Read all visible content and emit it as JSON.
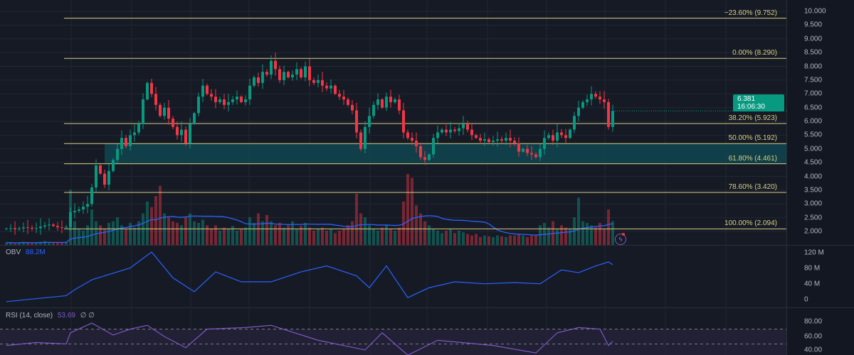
{
  "colors": {
    "background": "#161a25",
    "grid": "#232733",
    "up": "#089981",
    "down": "#f23645",
    "fib": "#d6cf82",
    "zone": "#0f4550",
    "obv": "#2962ff",
    "rsi": "#7e57c2",
    "rsi_band": "#2a2440",
    "vol_ma": "#2962ff",
    "price_tag": "#089981"
  },
  "price_axis": {
    "labels": [
      "10.000",
      "9.500",
      "9.000",
      "8.500",
      "8.000",
      "7.500",
      "7.000",
      "6.500",
      "6.000",
      "5.500",
      "5.000",
      "4.500",
      "4.000",
      "3.500",
      "3.000",
      "2.500",
      "2.000"
    ]
  },
  "price_tag": {
    "price": "6.381",
    "countdown": "16:06:30"
  },
  "obv_pane": {
    "title": "OBV",
    "value": "88.2M",
    "axis_labels": [
      "120 M",
      "80 M",
      "40 M",
      "0"
    ]
  },
  "rsi_pane": {
    "title": "RSI (14, close)",
    "value": "53.69",
    "extras": "∅ ∅",
    "axis_labels": [
      "80.00",
      "60.00",
      "40.00"
    ]
  },
  "fib_levels": [
    {
      "label": "−23.60% (9.752)",
      "price": 9.752
    },
    {
      "label": "0.00% (8.290)",
      "price": 8.29
    },
    {
      "label": "38.20% (5.923)",
      "price": 5.923
    },
    {
      "label": "50.00% (5.192)",
      "price": 5.192
    },
    {
      "label": "61.80% (4.461)",
      "price": 4.461
    },
    {
      "label": "78.60% (3.420)",
      "price": 3.42
    },
    {
      "label": "100.00% (2.094)",
      "price": 2.094
    }
  ],
  "chart_data": {
    "type": "candlestick",
    "title": "",
    "ylim": [
      2.0,
      10.0
    ],
    "highlight_zone": {
      "from": 4.461,
      "to": 5.192
    },
    "closes": [
      2.1,
      2.12,
      2.08,
      2.11,
      2.15,
      2.13,
      2.1,
      2.12,
      2.18,
      2.22,
      2.25,
      2.2,
      2.15,
      2.14,
      2.16,
      2.7,
      2.75,
      2.8,
      2.9,
      3.0,
      3.6,
      4.4,
      4.1,
      3.7,
      4.2,
      4.6,
      5.0,
      5.4,
      5.1,
      5.5,
      5.6,
      5.9,
      6.8,
      7.4,
      7.0,
      6.6,
      6.2,
      6.5,
      6.1,
      5.8,
      5.5,
      5.7,
      5.2,
      5.9,
      6.3,
      6.9,
      7.3,
      7.0,
      6.9,
      6.7,
      6.8,
      6.6,
      6.7,
      6.8,
      6.9,
      6.7,
      6.8,
      7.3,
      7.6,
      7.4,
      7.8,
      7.7,
      8.2,
      7.9,
      7.5,
      7.8,
      7.6,
      7.7,
      7.9,
      7.6,
      8.0,
      7.5,
      7.4,
      7.5,
      7.3,
      7.2,
      7.3,
      7.0,
      6.9,
      6.8,
      6.6,
      6.4,
      5.6,
      5.0,
      5.8,
      6.2,
      6.6,
      6.8,
      6.5,
      6.9,
      6.7,
      6.8,
      6.4,
      5.6,
      5.4,
      5.3,
      5.1,
      4.7,
      4.6,
      4.8,
      5.4,
      5.6,
      5.7,
      5.6,
      5.7,
      5.65,
      5.75,
      5.9,
      5.7,
      5.5,
      5.4,
      5.3,
      5.35,
      5.25,
      5.3,
      5.35,
      5.3,
      5.4,
      5.3,
      5.2,
      4.9,
      5.0,
      4.85,
      4.8,
      4.7,
      5.0,
      5.4,
      5.5,
      5.3,
      5.6,
      5.5,
      5.4,
      5.7,
      6.2,
      6.5,
      6.7,
      6.8,
      7.0,
      6.9,
      6.8,
      6.7,
      5.8,
      6.381
    ],
    "volumes": [
      3,
      3,
      2,
      3,
      4,
      3,
      2,
      3,
      4,
      5,
      4,
      3,
      3,
      3,
      4,
      70,
      30,
      20,
      18,
      25,
      45,
      30,
      25,
      20,
      28,
      30,
      35,
      25,
      20,
      28,
      22,
      30,
      40,
      55,
      48,
      62,
      75,
      40,
      35,
      30,
      28,
      25,
      35,
      40,
      30,
      28,
      32,
      25,
      20,
      25,
      18,
      22,
      20,
      24,
      18,
      20,
      22,
      35,
      28,
      40,
      30,
      38,
      30,
      25,
      28,
      22,
      25,
      30,
      20,
      24,
      28,
      22,
      18,
      20,
      22,
      18,
      20,
      15,
      18,
      20,
      25,
      30,
      65,
      40,
      35,
      25,
      20,
      18,
      22,
      25,
      20,
      18,
      22,
      55,
      90,
      85,
      50,
      40,
      30,
      25,
      20,
      18,
      15,
      18,
      20,
      15,
      18,
      16,
      14,
      12,
      14,
      10,
      12,
      11,
      10,
      12,
      11,
      10,
      12,
      12,
      14,
      12,
      10,
      12,
      13,
      25,
      28,
      22,
      30,
      20,
      25,
      22,
      20,
      35,
      60,
      30,
      28,
      25,
      22,
      28,
      20,
      45,
      30
    ],
    "obv": {
      "ylim": [
        -10,
        130
      ],
      "unit": "M",
      "points": [
        [
          0,
          -5
        ],
        [
          14,
          10
        ],
        [
          16,
          25
        ],
        [
          20,
          50
        ],
        [
          29,
          80
        ],
        [
          34,
          120
        ],
        [
          39,
          55
        ],
        [
          44,
          20
        ],
        [
          49,
          70
        ],
        [
          55,
          45
        ],
        [
          62,
          45
        ],
        [
          69,
          70
        ],
        [
          75,
          85
        ],
        [
          82,
          60
        ],
        [
          85,
          30
        ],
        [
          89,
          85
        ],
        [
          94,
          5
        ],
        [
          99,
          30
        ],
        [
          105,
          45
        ],
        [
          112,
          40
        ],
        [
          119,
          43
        ],
        [
          125,
          40
        ],
        [
          130,
          75
        ],
        [
          134,
          68
        ],
        [
          138,
          85
        ],
        [
          141,
          95
        ],
        [
          142,
          88.2
        ]
      ]
    },
    "rsi": {
      "ylim": [
        30,
        90
      ],
      "upper_band": 70,
      "lower_band": 50,
      "points": [
        [
          0,
          48
        ],
        [
          7,
          52
        ],
        [
          14,
          50
        ],
        [
          15,
          65
        ],
        [
          20,
          78
        ],
        [
          25,
          62
        ],
        [
          29,
          70
        ],
        [
          33,
          75
        ],
        [
          37,
          60
        ],
        [
          42,
          45
        ],
        [
          47,
          70
        ],
        [
          56,
          72
        ],
        [
          62,
          75
        ],
        [
          73,
          55
        ],
        [
          84,
          42
        ],
        [
          88,
          65
        ],
        [
          94,
          35
        ],
        [
          101,
          55
        ],
        [
          114,
          48
        ],
        [
          124,
          38
        ],
        [
          129,
          65
        ],
        [
          134,
          72
        ],
        [
          139,
          70
        ],
        [
          141,
          48
        ],
        [
          142,
          53.69
        ]
      ]
    }
  }
}
